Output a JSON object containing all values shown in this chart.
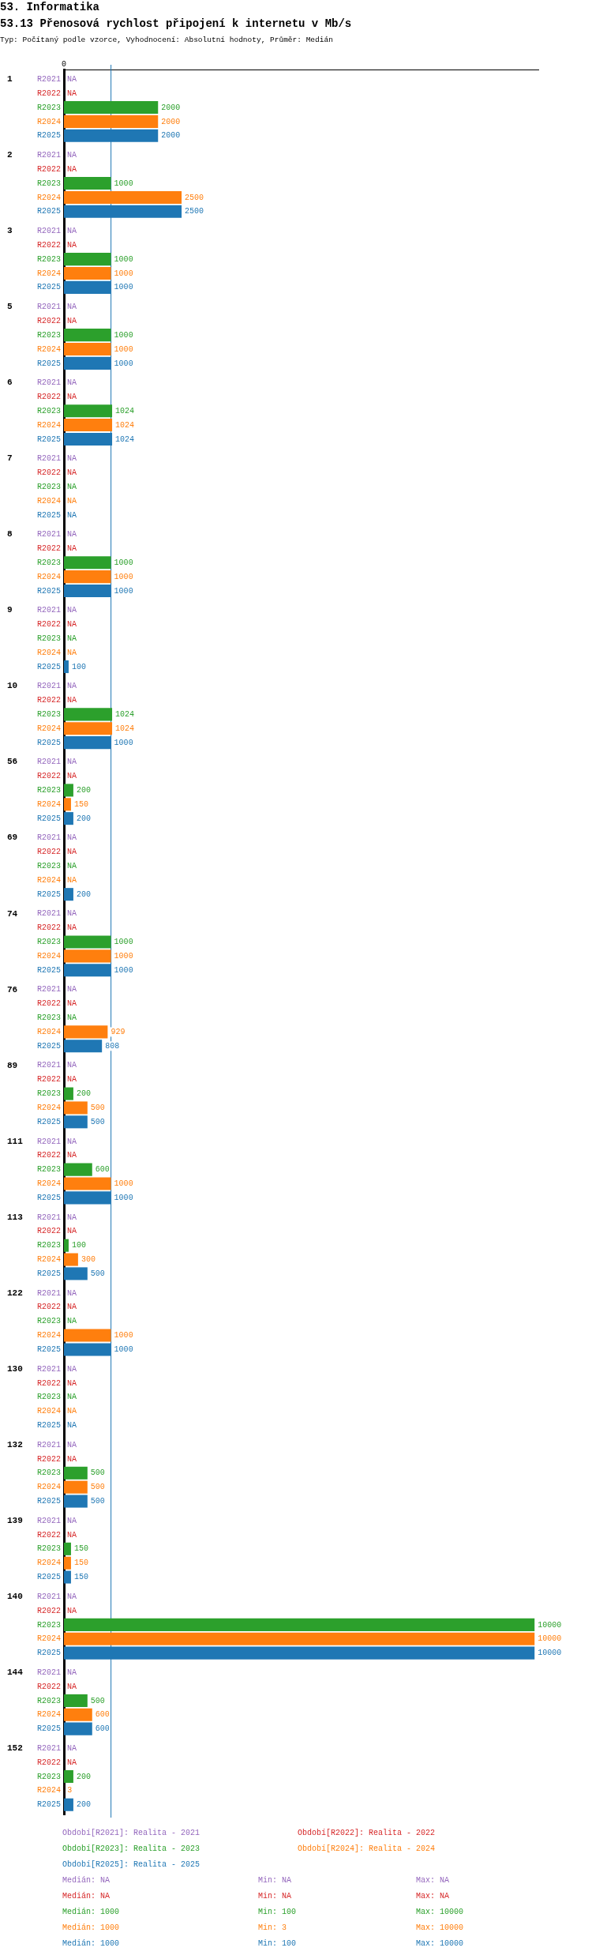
{
  "chart_data": {
    "type": "bar",
    "orientation": "horizontal",
    "title": "53. Informatika",
    "subtitle": "53.13 Přenosová rychlost připojení k internetu v Mb/s",
    "categories": [
      "1",
      "2",
      "3",
      "5",
      "6",
      "7",
      "8",
      "9",
      "10",
      "56",
      "69",
      "74",
      "76",
      "89",
      "111",
      "113",
      "122",
      "130",
      "132",
      "139",
      "140",
      "144",
      "152"
    ],
    "series": [
      {
        "name": "R2021",
        "color": "#9467bd",
        "values": [
          null,
          null,
          null,
          null,
          null,
          null,
          null,
          null,
          null,
          null,
          null,
          null,
          null,
          null,
          null,
          null,
          null,
          null,
          null,
          null,
          null,
          null,
          null
        ],
        "value_labels": [
          "NA",
          "NA",
          "NA",
          "NA",
          "NA",
          "NA",
          "NA",
          "NA",
          "NA",
          "NA",
          "NA",
          "NA",
          "NA",
          "NA",
          "NA",
          "NA",
          "NA",
          "NA",
          "NA",
          "NA",
          "NA",
          "NA",
          "NA"
        ]
      },
      {
        "name": "R2022",
        "color": "#d62728",
        "values": [
          null,
          null,
          null,
          null,
          null,
          null,
          null,
          null,
          null,
          null,
          null,
          null,
          null,
          null,
          null,
          null,
          null,
          null,
          null,
          null,
          null,
          null,
          null
        ],
        "value_labels": [
          "NA",
          "NA",
          "NA",
          "NA",
          "NA",
          "NA",
          "NA",
          "NA",
          "NA",
          "NA",
          "NA",
          "NA",
          "NA",
          "NA",
          "NA",
          "NA",
          "NA",
          "NA",
          "NA",
          "NA",
          "NA",
          "NA",
          "NA"
        ]
      },
      {
        "name": "R2023",
        "color": "#2ca02c",
        "values": [
          2000,
          1000,
          1000,
          1000,
          1024,
          null,
          1000,
          null,
          1024,
          200,
          null,
          1000,
          null,
          200,
          600,
          100,
          null,
          null,
          500,
          150,
          10000,
          500,
          200
        ],
        "value_labels": [
          "2000",
          "1000",
          "1000",
          "1000",
          "1024",
          "NA",
          "1000",
          "NA",
          "1024",
          "200",
          "NA",
          "1000",
          "NA",
          "200",
          "600",
          "100",
          "NA",
          "NA",
          "500",
          "150",
          "10000",
          "500",
          "200"
        ]
      },
      {
        "name": "R2024",
        "color": "#ff7f0e",
        "values": [
          2000,
          2500,
          1000,
          1000,
          1024,
          null,
          1000,
          null,
          1024,
          150,
          null,
          1000,
          929,
          500,
          1000,
          300,
          1000,
          null,
          500,
          150,
          10000,
          600,
          3
        ],
        "value_labels": [
          "2000",
          "2500",
          "1000",
          "1000",
          "1024",
          "NA",
          "1000",
          "NA",
          "1024",
          "150",
          "NA",
          "1000",
          "929",
          "500",
          "1000",
          "300",
          "1000",
          "NA",
          "500",
          "150",
          "10000",
          "600",
          "3"
        ]
      },
      {
        "name": "R2025",
        "color": "#1f77b4",
        "values": [
          2000,
          2500,
          1000,
          1000,
          1024,
          null,
          1000,
          100,
          1000,
          200,
          200,
          1000,
          808,
          500,
          1000,
          500,
          1000,
          null,
          500,
          150,
          10000,
          600,
          200
        ],
        "value_labels": [
          "2000",
          "2500",
          "1000",
          "1000",
          "1024",
          "NA",
          "1000",
          "100",
          "1000",
          "200",
          "200",
          "1000",
          "808",
          "500",
          "1000",
          "500",
          "1000",
          "NA",
          "500",
          "150",
          "10000",
          "600",
          "200"
        ]
      }
    ],
    "xlim": [
      0,
      10080
    ],
    "ref_lines": [
      {
        "axis": "x",
        "value": 1000,
        "color": "#1f77b4"
      }
    ],
    "annotations": [
      "Typ: Počítaný podle vzorce, Vyhodnocení: Absolutní hodnoty, Průměr: Medián",
      "Období[R2021]: Realita - 2021",
      "Období[R2022]: Realita - 2022",
      "Období[R2023]: Realita - 2023",
      "Období[R2024]: Realita - 2024",
      "Období[R2025]: Realita - 2025",
      "Medián: NA",
      "Min: NA",
      "Max: NA",
      "Medián: NA",
      "Min: NA",
      "Max: NA",
      "Medián: 1000",
      "Min: 100",
      "Max: 10000",
      "Medián: 1000",
      "Min: 3",
      "Max: 10000",
      "Medián: 1000",
      "Min: 100",
      "Max: 10000",
      "0"
    ]
  }
}
